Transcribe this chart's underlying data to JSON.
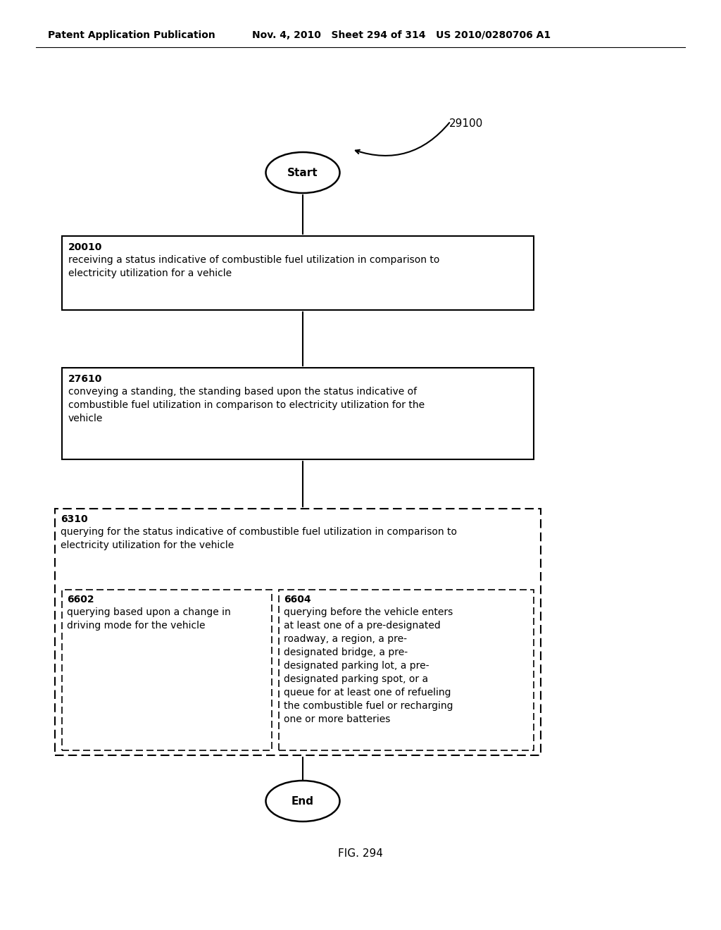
{
  "header_left": "Patent Application Publication",
  "header_mid": "Nov. 4, 2010   Sheet 294 of 314   US 2010/0280706 A1",
  "figure_label": "FIG. 294",
  "diagram_label": "29100",
  "start_label": "Start",
  "end_label": "End",
  "box1_id": "20010",
  "box1_text": "receiving a status indicative of combustible fuel utilization in comparison to\nelectricity utilization for a vehicle",
  "box2_id": "27610",
  "box2_text": "conveying a standing, the standing based upon the status indicative of\ncombustible fuel utilization in comparison to electricity utilization for the\nvehicle",
  "box3_id": "6310",
  "box3_text": "querying for the status indicative of combustible fuel utilization in comparison to\nelectricity utilization for the vehicle",
  "box3a_id": "6602",
  "box3a_text": "querying based upon a change in\ndriving mode for the vehicle",
  "box3b_id": "6604",
  "box3b_text": "querying before the vehicle enters\nat least one of a pre-designated\nroadway, a region, a pre-\ndesignated bridge, a pre-\ndesignated parking lot, a pre-\ndesignated parking spot, or a\nqueue for at least one of refueling\nthe combustible fuel or recharging\none or more batteries",
  "bg_color": "#ffffff",
  "text_color": "#000000"
}
